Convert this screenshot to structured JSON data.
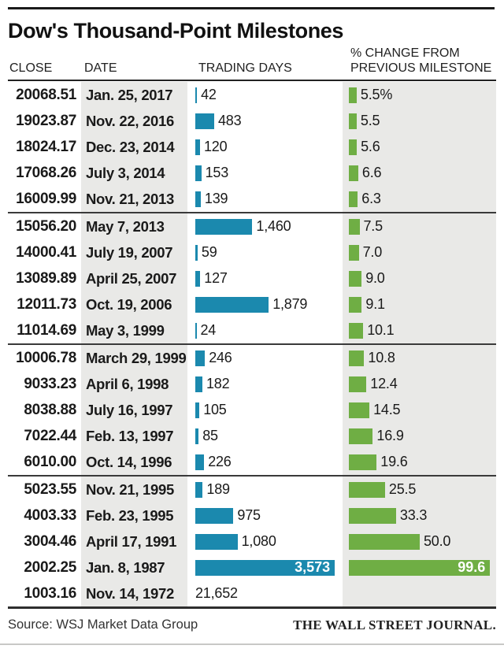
{
  "title": "Dow's Thousand-Point Milestones",
  "columns": {
    "close": "CLOSE",
    "date": "DATE",
    "days": "TRADING DAYS",
    "pct_line1": "% CHANGE FROM",
    "pct_line2": "PREVIOUS MILESTONE"
  },
  "footer": {
    "source": "Source: WSJ Market Data Group",
    "brand": "THE WALL STREET JOURNAL."
  },
  "colors": {
    "blue": "#1b89ae",
    "green": "#6fae44",
    "column_bg": "#e9e9e7"
  },
  "rows": [
    {
      "close": "20068.51",
      "date": "Jan. 25, 2017",
      "days": 42,
      "days_label": "42",
      "pct": 5.5,
      "pct_label": "5.5%"
    },
    {
      "close": "19023.87",
      "date": "Nov. 22, 2016",
      "days": 483,
      "days_label": "483",
      "pct": 5.5,
      "pct_label": "5.5"
    },
    {
      "close": "18024.17",
      "date": "Dec. 23, 2014",
      "days": 120,
      "days_label": "120",
      "pct": 5.6,
      "pct_label": "5.6"
    },
    {
      "close": "17068.26",
      "date": "July 3, 2014",
      "days": 153,
      "days_label": "153",
      "pct": 6.6,
      "pct_label": "6.6"
    },
    {
      "close": "16009.99",
      "date": "Nov. 21, 2013",
      "days": 139,
      "days_label": "139",
      "pct": 6.3,
      "pct_label": "6.3"
    },
    {
      "close": "15056.20",
      "date": "May 7, 2013",
      "days": 1460,
      "days_label": "1,460",
      "pct": 7.5,
      "pct_label": "7.5"
    },
    {
      "close": "14000.41",
      "date": "July 19, 2007",
      "days": 59,
      "days_label": "59",
      "pct": 7.0,
      "pct_label": "7.0"
    },
    {
      "close": "13089.89",
      "date": "April 25, 2007",
      "days": 127,
      "days_label": "127",
      "pct": 9.0,
      "pct_label": "9.0"
    },
    {
      "close": "12011.73",
      "date": "Oct. 19, 2006",
      "days": 1879,
      "days_label": "1,879",
      "pct": 9.1,
      "pct_label": "9.1"
    },
    {
      "close": "11014.69",
      "date": "May 3, 1999",
      "days": 24,
      "days_label": "24",
      "pct": 10.1,
      "pct_label": "10.1"
    },
    {
      "close": "10006.78",
      "date": "March 29, 1999",
      "days": 246,
      "days_label": "246",
      "pct": 10.8,
      "pct_label": "10.8"
    },
    {
      "close": "9033.23",
      "date": "April 6, 1998",
      "days": 182,
      "days_label": "182",
      "pct": 12.4,
      "pct_label": "12.4"
    },
    {
      "close": "8038.88",
      "date": "July 16, 1997",
      "days": 105,
      "days_label": "105",
      "pct": 14.5,
      "pct_label": "14.5"
    },
    {
      "close": "7022.44",
      "date": "Feb. 13, 1997",
      "days": 85,
      "days_label": "85",
      "pct": 16.9,
      "pct_label": "16.9"
    },
    {
      "close": "6010.00",
      "date": "Oct. 14, 1996",
      "days": 226,
      "days_label": "226",
      "pct": 19.6,
      "pct_label": "19.6"
    },
    {
      "close": "5023.55",
      "date": "Nov. 21, 1995",
      "days": 189,
      "days_label": "189",
      "pct": 25.5,
      "pct_label": "25.5"
    },
    {
      "close": "4003.33",
      "date": "Feb. 23, 1995",
      "days": 975,
      "days_label": "975",
      "pct": 33.3,
      "pct_label": "33.3"
    },
    {
      "close": "3004.46",
      "date": "April 17, 1991",
      "days": 1080,
      "days_label": "1,080",
      "pct": 50.0,
      "pct_label": "50.0"
    },
    {
      "close": "2002.25",
      "date": "Jan. 8, 1987",
      "days": 3573,
      "days_label": "3,573",
      "pct": 99.6,
      "pct_label": "99.6",
      "days_label_inside": true,
      "pct_label_inside": true
    },
    {
      "close": "1003.16",
      "date": "Nov. 14, 1972",
      "days": 21652,
      "days_label": "21,652",
      "pct": null,
      "pct_label": "",
      "no_days_bar": true
    }
  ],
  "chart_data": {
    "type": "bar",
    "title": "Dow's Thousand-Point Milestones",
    "orientation": "horizontal",
    "categories": [
      "20068.51",
      "19023.87",
      "18024.17",
      "17068.26",
      "16009.99",
      "15056.20",
      "14000.41",
      "13089.89",
      "12011.73",
      "11014.69",
      "10006.78",
      "9033.23",
      "8038.88",
      "7022.44",
      "6010.00",
      "5023.55",
      "4003.33",
      "3004.46",
      "2002.25",
      "1003.16"
    ],
    "category_dates": [
      "Jan. 25, 2017",
      "Nov. 22, 2016",
      "Dec. 23, 2014",
      "July 3, 2014",
      "Nov. 21, 2013",
      "May 7, 2013",
      "July 19, 2007",
      "April 25, 2007",
      "Oct. 19, 2006",
      "May 3, 1999",
      "March 29, 1999",
      "April 6, 1998",
      "July 16, 1997",
      "Feb. 13, 1997",
      "Oct. 14, 1996",
      "Nov. 21, 1995",
      "Feb. 23, 1995",
      "April 17, 1991",
      "Jan. 8, 1987",
      "Nov. 14, 1972"
    ],
    "series": [
      {
        "name": "Trading days",
        "color": "#1b89ae",
        "values": [
          42,
          483,
          120,
          153,
          139,
          1460,
          59,
          127,
          1879,
          24,
          246,
          182,
          105,
          85,
          226,
          189,
          975,
          1080,
          3573,
          21652
        ]
      },
      {
        "name": "% change from previous milestone",
        "color": "#6fae44",
        "values": [
          5.5,
          5.5,
          5.6,
          6.6,
          6.3,
          7.5,
          7.0,
          9.0,
          9.1,
          10.1,
          10.8,
          12.4,
          14.5,
          16.9,
          19.6,
          25.5,
          33.3,
          50.0,
          99.6,
          null
        ]
      }
    ],
    "notes": "21,652 trading days shown as text only (no bar); first % value labeled with % sign; 3,573 and 99.6 labels printed in white inside their bars",
    "legend_position": "none",
    "grid": false,
    "source": "Source: WSJ Market Data Group"
  }
}
